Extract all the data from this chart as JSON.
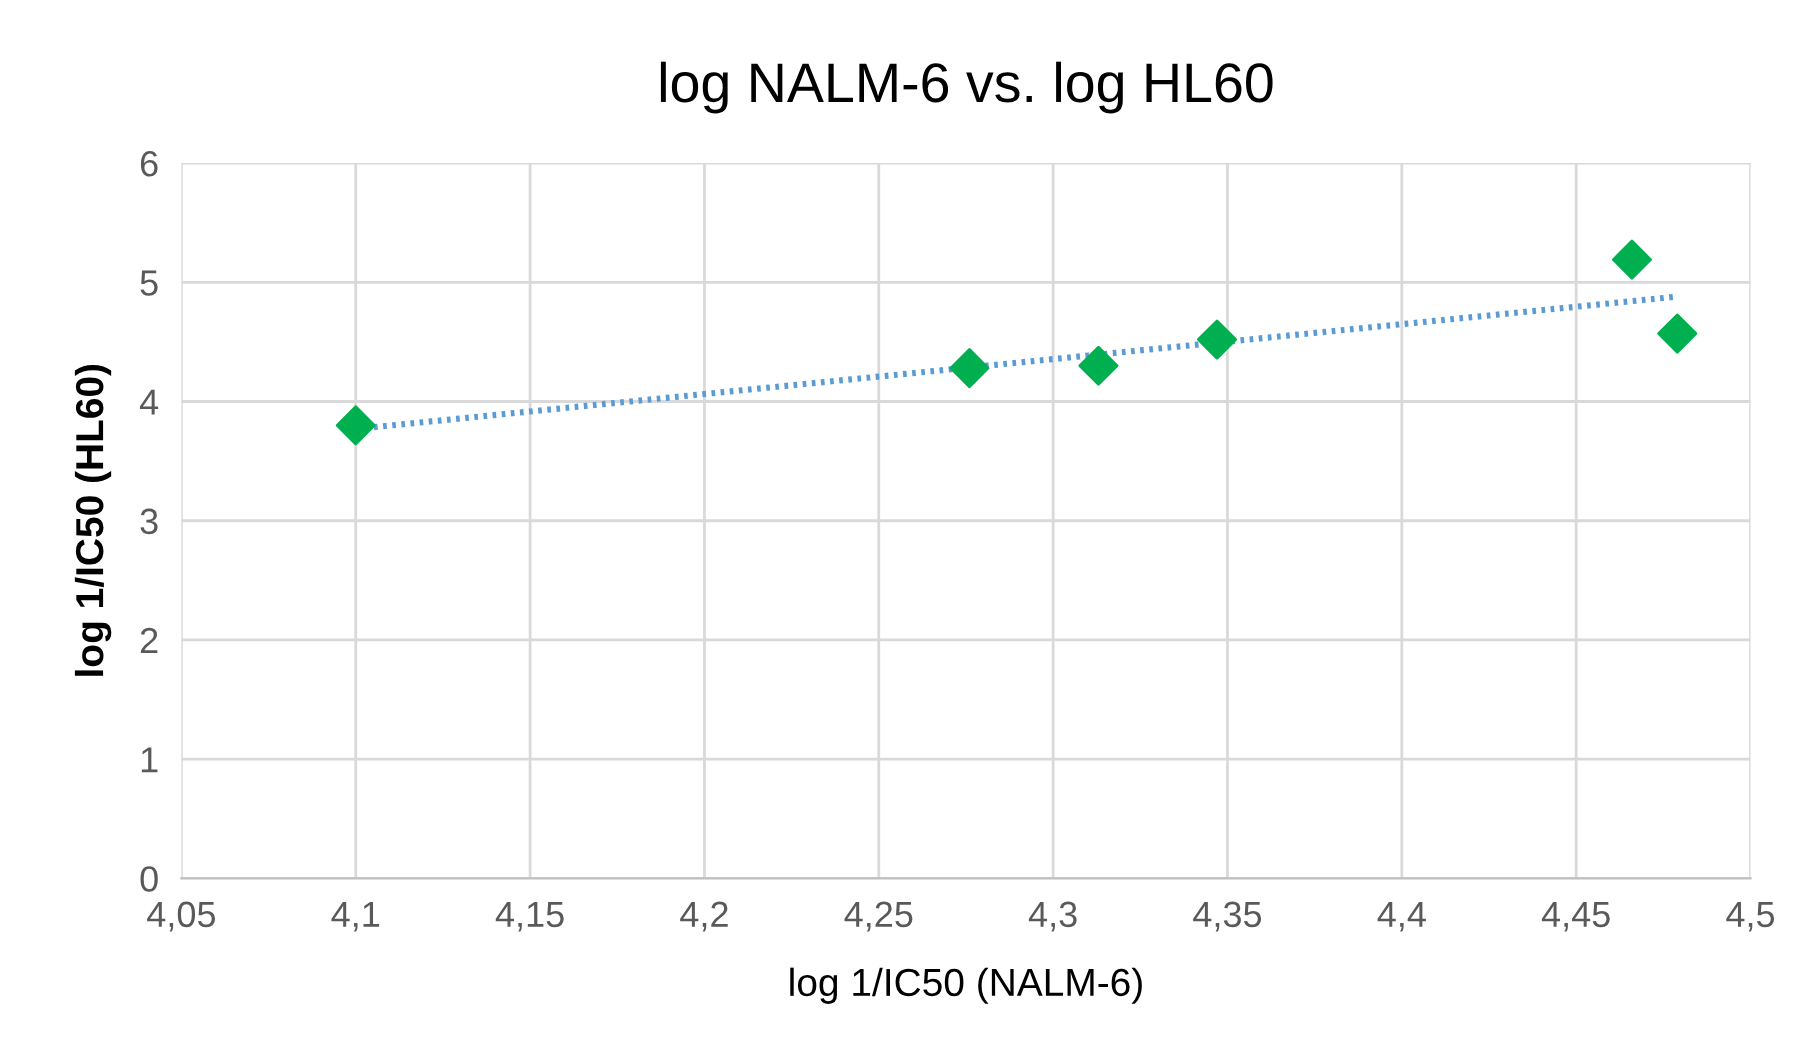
{
  "chart_data": {
    "type": "scatter",
    "title": "log NALM-6 vs. log HL60",
    "xlabel": "log 1/IC50 (NALM-6)",
    "ylabel": "log 1/IC50 (HL60)",
    "x": [
      4.1,
      4.276,
      4.313,
      4.347,
      4.466,
      4.479
    ],
    "series": [
      {
        "color": "#00b050",
        "values": [
          3.8,
          4.28,
          4.3,
          4.52,
          5.19,
          4.57
        ],
        "marker": "diamond"
      },
      {
        "type": "line",
        "color": "#5b9bd5",
        "line_style": "dotted",
        "x": [
          4.1,
          4.479
        ],
        "values": [
          3.77,
          4.88
        ]
      }
    ],
    "xlim": [
      4.05,
      4.5
    ],
    "ylim": [
      0,
      6
    ],
    "xticks": [
      {
        "value": 4.05,
        "label": "4,05"
      },
      {
        "value": 4.1,
        "label": "4,1"
      },
      {
        "value": 4.15,
        "label": "4,15"
      },
      {
        "value": 4.2,
        "label": "4,2"
      },
      {
        "value": 4.25,
        "label": "4,25"
      },
      {
        "value": 4.3,
        "label": "4,3"
      },
      {
        "value": 4.35,
        "label": "4,35"
      },
      {
        "value": 4.4,
        "label": "4,4"
      },
      {
        "value": 4.45,
        "label": "4,45"
      },
      {
        "value": 4.5,
        "label": "4,5"
      }
    ],
    "yticks": [
      0,
      1,
      2,
      3,
      4,
      5,
      6
    ],
    "grid": true
  }
}
